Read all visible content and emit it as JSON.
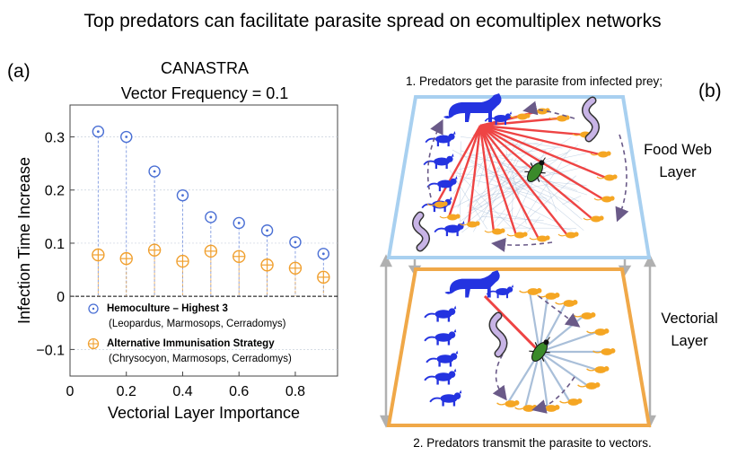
{
  "title": "Top predators can facilitate parasite spread on ecomultiplex networks",
  "panel_a": {
    "label": "(a)",
    "subtitle_line1": "CANASTRA",
    "subtitle_line2": "Vector Frequency = 0.1"
  },
  "panel_b": {
    "label": "(b)",
    "caption_top": "1. Predators get the parasite from infected prey;",
    "caption_bottom": "2. Predators transmit the parasite to vectors.",
    "layer_top_line1": "Food Web",
    "layer_top_line2": "Layer",
    "layer_bottom_line1": "Vectorial",
    "layer_bottom_line2": "Layer"
  },
  "colors": {
    "blue_series": "#4a6fd4",
    "orange_series": "#f0a030",
    "predator": "#2433e0",
    "prey": "#f5a623",
    "red_link": "#ee4444",
    "vector_link": "#a9bfd9",
    "bug": "#3a8a2a",
    "arrow": "#6a5a88",
    "top_frame": "#a8d0f0",
    "bottom_frame": "#f0a848",
    "connector": "#b0b0b0"
  },
  "icons": [
    "blue-mammal-silhouette-icon",
    "orange-rodent-silhouette-icon",
    "green-triatomine-bug-icon",
    "purple-parasite-squiggle-icon"
  ],
  "chart_data": {
    "type": "scatter",
    "title": "",
    "xlabel": "Vectorial Layer Importance",
    "ylabel": "Infection Time Increase",
    "xlim": [
      0,
      0.95
    ],
    "ylim": [
      -0.15,
      0.36
    ],
    "xticks": [
      "0",
      "0.2",
      "0.4",
      "0.6",
      "0.8"
    ],
    "yticks": [
      "0.3",
      "0.2",
      "0.1",
      "0",
      "−0.1"
    ],
    "xtick_values": [
      0,
      0.2,
      0.4,
      0.6,
      0.8
    ],
    "ytick_values": [
      0.3,
      0.2,
      0.1,
      0,
      -0.1
    ],
    "grid": true,
    "x": [
      0.1,
      0.2,
      0.3,
      0.4,
      0.5,
      0.6,
      0.7,
      0.8,
      0.9
    ],
    "series": [
      {
        "name": "Hemoculture – Highest 3",
        "detail": "(Leopardus, Marmosops, Cerradomys)",
        "values": [
          0.31,
          0.3,
          0.235,
          0.19,
          0.149,
          0.138,
          0.124,
          0.102,
          0.08
        ]
      },
      {
        "name": "Alternative Immunisation Strategy",
        "detail": "(Chrysocyon, Marmosops, Cerradomys)",
        "values": [
          0.078,
          0.071,
          0.087,
          0.066,
          0.085,
          0.075,
          0.059,
          0.053,
          0.036
        ]
      }
    ],
    "legend_position": "bottom-left"
  }
}
